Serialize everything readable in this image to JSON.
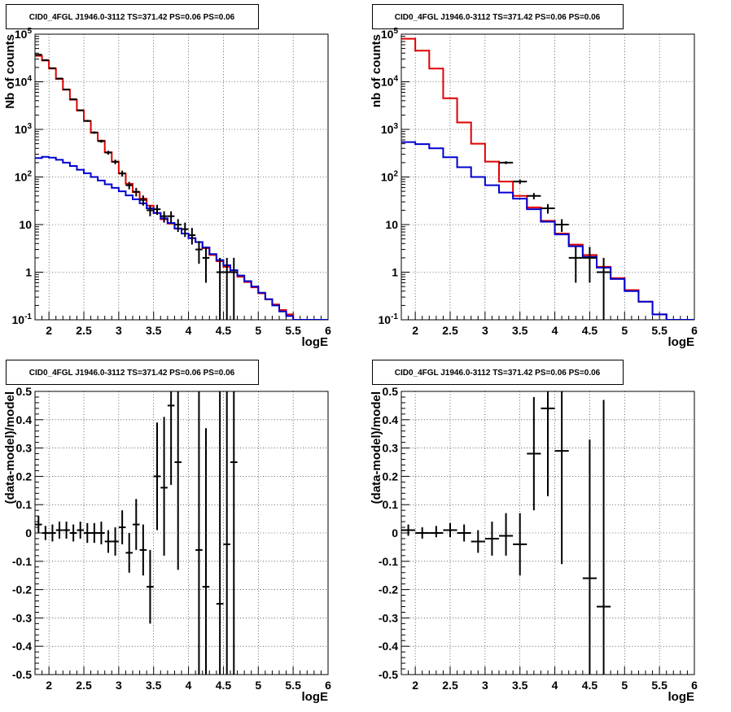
{
  "chart_data": [
    {
      "type": "line",
      "title": "CID0_4FGL J1946.0-3112 TS=371.42 PS=0.06 PS=0.06",
      "xlabel": "logE",
      "ylabel": "Nb of counts",
      "xlim": [
        1.8,
        6
      ],
      "ylim": [
        0.1,
        100000
      ],
      "yscale": "log",
      "grid": true,
      "x_ticks": [
        2,
        2.5,
        3,
        3.5,
        4,
        4.5,
        5,
        5.5,
        6
      ],
      "y_ticks": [
        0.1,
        1,
        10,
        100,
        1000,
        10000,
        100000
      ],
      "y_tick_labels": [
        "10^-1",
        "1",
        "10",
        "10^2",
        "10^3",
        "10^4",
        "10^5"
      ],
      "bin_edges": [
        1.8,
        1.9,
        2.0,
        2.1,
        2.2,
        2.3,
        2.4,
        2.5,
        2.6,
        2.7,
        2.8,
        2.9,
        3.0,
        3.1,
        3.2,
        3.3,
        3.4,
        3.5,
        3.6,
        3.7,
        3.8,
        3.9,
        4.0,
        4.1,
        4.2,
        4.3,
        4.4,
        4.5,
        4.6,
        4.7,
        4.8,
        4.9,
        5.0,
        5.1,
        5.2,
        5.3,
        5.4,
        5.5,
        5.6,
        5.7,
        5.8,
        5.9,
        6.0
      ],
      "series": [
        {
          "color": "#e00000",
          "values": [
            35000,
            28000,
            19000,
            11500,
            6800,
            4200,
            2500,
            1500,
            850,
            580,
            330,
            210,
            118,
            72,
            48,
            35,
            25,
            17.5,
            13,
            10.5,
            8.2,
            6.5,
            5.2,
            4.3,
            3.2,
            2.3,
            1.7,
            1.3,
            1.0,
            0.8,
            0.62,
            0.48,
            0.36,
            0.27,
            0.21,
            0.16,
            0.13,
            0.1,
            0.1,
            0.1,
            0.1,
            0.1
          ]
        },
        {
          "color": "#0000d0",
          "values": [
            250,
            265,
            255,
            230,
            200,
            170,
            142,
            120,
            100,
            84,
            70,
            59,
            50,
            41,
            34,
            28,
            22,
            17.5,
            13.5,
            10.8,
            8.3,
            6.5,
            5.2,
            4.3,
            3.3,
            2.4,
            1.8,
            1.4,
            1.1,
            0.85,
            0.65,
            0.5,
            0.37,
            0.27,
            0.2,
            0.15,
            0.12,
            0.1,
            0.1,
            0.1,
            0.1,
            0.1
          ]
        }
      ],
      "points": [
        {
          "x": 1.85,
          "y": 37000,
          "ylo": 36500,
          "yhi": 37500
        },
        {
          "x": 1.95,
          "y": 28500,
          "ylo": 28000,
          "yhi": 29000
        },
        {
          "x": 2.05,
          "y": 19300,
          "ylo": 18900,
          "yhi": 19700
        },
        {
          "x": 2.15,
          "y": 11700,
          "ylo": 11400,
          "yhi": 12000
        },
        {
          "x": 2.25,
          "y": 6900,
          "ylo": 6700,
          "yhi": 7100
        },
        {
          "x": 2.35,
          "y": 4300,
          "ylo": 4150,
          "yhi": 4450
        },
        {
          "x": 2.45,
          "y": 2520,
          "ylo": 2420,
          "yhi": 2620
        },
        {
          "x": 2.55,
          "y": 1510,
          "ylo": 1440,
          "yhi": 1580
        },
        {
          "x": 2.65,
          "y": 860,
          "ylo": 810,
          "yhi": 910
        },
        {
          "x": 2.75,
          "y": 565,
          "ylo": 525,
          "yhi": 605
        },
        {
          "x": 2.85,
          "y": 325,
          "ylo": 295,
          "yhi": 355
        },
        {
          "x": 2.95,
          "y": 208,
          "ylo": 185,
          "yhi": 231
        },
        {
          "x": 3.05,
          "y": 119,
          "ylo": 102,
          "yhi": 136
        },
        {
          "x": 3.15,
          "y": 67,
          "ylo": 55,
          "yhi": 79
        },
        {
          "x": 3.25,
          "y": 49,
          "ylo": 39,
          "yhi": 59
        },
        {
          "x": 3.35,
          "y": 33,
          "ylo": 25,
          "yhi": 41
        },
        {
          "x": 3.45,
          "y": 20,
          "ylo": 15,
          "yhi": 25
        },
        {
          "x": 3.55,
          "y": 21,
          "ylo": 16,
          "yhi": 26
        },
        {
          "x": 3.65,
          "y": 15,
          "ylo": 11,
          "yhi": 19
        },
        {
          "x": 3.75,
          "y": 15,
          "ylo": 11,
          "yhi": 19
        },
        {
          "x": 3.85,
          "y": 10,
          "ylo": 7,
          "yhi": 13
        },
        {
          "x": 3.95,
          "y": 8,
          "ylo": 5.5,
          "yhi": 11
        },
        {
          "x": 4.05,
          "y": 6,
          "ylo": 3.8,
          "yhi": 8.5
        },
        {
          "x": 4.15,
          "y": 3,
          "ylo": 1.5,
          "yhi": 4.5
        },
        {
          "x": 4.25,
          "y": 2,
          "ylo": 0.6,
          "yhi": 3.4
        },
        {
          "x": 4.45,
          "y": 1,
          "ylo": 0.1,
          "yhi": 2.0
        },
        {
          "x": 4.55,
          "y": 1,
          "ylo": 0.1,
          "yhi": 2.0
        },
        {
          "x": 4.65,
          "y": 1,
          "ylo": 0.1,
          "yhi": 2.0
        }
      ]
    },
    {
      "type": "line",
      "title": "CID0_4FGL J1946.0-3112 TS=371.42 PS=0.06 PS=0.06",
      "xlabel": "logE",
      "ylabel": "nb of counts",
      "xlim": [
        1.8,
        6
      ],
      "ylim": [
        0.1,
        100000
      ],
      "yscale": "log",
      "grid": true,
      "x_ticks": [
        2,
        2.5,
        3,
        3.5,
        4,
        4.5,
        5,
        5.5,
        6
      ],
      "y_ticks": [
        0.1,
        1,
        10,
        100,
        1000,
        10000,
        100000
      ],
      "y_tick_labels": [
        "10^-1",
        "1",
        "10",
        "10^2",
        "10^3",
        "10^4",
        "10^5"
      ],
      "bin_edges": [
        1.8,
        2.0,
        2.2,
        2.4,
        2.6,
        2.8,
        3.0,
        3.2,
        3.4,
        3.6,
        3.8,
        4.0,
        4.2,
        4.4,
        4.6,
        4.8,
        5.0,
        5.2,
        5.4,
        5.6,
        5.8,
        6.0
      ],
      "series": [
        {
          "color": "#e00000",
          "values": [
            80000,
            45000,
            19000,
            4500,
            1400,
            500,
            210,
            80,
            40,
            23,
            12,
            6.5,
            3.8,
            2.3,
            1.3,
            0.75,
            0.42,
            0.24,
            0.13,
            0.1,
            0.1
          ]
        },
        {
          "color": "#0000d0",
          "values": [
            540,
            490,
            400,
            260,
            160,
            100,
            67,
            47,
            35,
            21,
            11.5,
            6.2,
            3.5,
            2.1,
            1.25,
            0.72,
            0.4,
            0.24,
            0.13,
            0.1,
            0.1
          ]
        }
      ],
      "points": [
        {
          "x": 3.3,
          "y": 200,
          "ylo": 186,
          "yhi": 214,
          "xw": 0.1
        },
        {
          "x": 3.5,
          "y": 80,
          "ylo": 71,
          "yhi": 89,
          "xw": 0.1
        },
        {
          "x": 3.7,
          "y": 40,
          "ylo": 34,
          "yhi": 46,
          "xw": 0.1
        },
        {
          "x": 3.9,
          "y": 22,
          "ylo": 17,
          "yhi": 27,
          "xw": 0.1
        },
        {
          "x": 4.1,
          "y": 10,
          "ylo": 7,
          "yhi": 13,
          "xw": 0.1
        },
        {
          "x": 4.3,
          "y": 2,
          "ylo": 0.6,
          "yhi": 3.4,
          "xw": 0.1
        },
        {
          "x": 4.5,
          "y": 2,
          "ylo": 0.6,
          "yhi": 3.4,
          "xw": 0.1
        },
        {
          "x": 4.7,
          "y": 1,
          "ylo": 0.1,
          "yhi": 2.0,
          "xw": 0.1
        }
      ]
    },
    {
      "type": "scatter",
      "title": "CID0_4FGL J1946.0-3112 TS=371.42 PS=0.06 PS=0.06",
      "xlabel": "logE",
      "ylabel": "(data-model)/model",
      "xlim": [
        1.8,
        6
      ],
      "ylim": [
        -0.5,
        0.5
      ],
      "grid": true,
      "x_ticks": [
        2,
        2.5,
        3,
        3.5,
        4,
        4.5,
        5,
        5.5,
        6
      ],
      "y_ticks": [
        -0.5,
        -0.4,
        -0.3,
        -0.2,
        -0.1,
        0,
        0.1,
        0.2,
        0.3,
        0.4,
        0.5
      ],
      "points": [
        {
          "x": 1.85,
          "y": 0.03,
          "ylo": 0.0,
          "yhi": 0.06
        },
        {
          "x": 1.95,
          "y": 0.0,
          "ylo": -0.025,
          "yhi": 0.025
        },
        {
          "x": 2.05,
          "y": 0.0,
          "ylo": -0.03,
          "yhi": 0.03
        },
        {
          "x": 2.15,
          "y": 0.01,
          "ylo": -0.02,
          "yhi": 0.04
        },
        {
          "x": 2.25,
          "y": 0.01,
          "ylo": -0.02,
          "yhi": 0.04
        },
        {
          "x": 2.35,
          "y": 0.0,
          "ylo": -0.03,
          "yhi": 0.03
        },
        {
          "x": 2.45,
          "y": 0.01,
          "ylo": -0.02,
          "yhi": 0.04
        },
        {
          "x": 2.55,
          "y": 0.0,
          "ylo": -0.035,
          "yhi": 0.035
        },
        {
          "x": 2.65,
          "y": 0.0,
          "ylo": -0.035,
          "yhi": 0.035
        },
        {
          "x": 2.75,
          "y": 0.0,
          "ylo": -0.04,
          "yhi": 0.04
        },
        {
          "x": 2.85,
          "y": -0.03,
          "ylo": -0.07,
          "yhi": 0.01
        },
        {
          "x": 2.95,
          "y": -0.03,
          "ylo": -0.08,
          "yhi": 0.02
        },
        {
          "x": 3.05,
          "y": 0.02,
          "ylo": -0.04,
          "yhi": 0.08
        },
        {
          "x": 3.15,
          "y": -0.07,
          "ylo": -0.14,
          "yhi": 0.0
        },
        {
          "x": 3.25,
          "y": 0.03,
          "ylo": -0.06,
          "yhi": 0.12
        },
        {
          "x": 3.35,
          "y": -0.06,
          "ylo": -0.15,
          "yhi": 0.03
        },
        {
          "x": 3.45,
          "y": -0.19,
          "ylo": -0.32,
          "yhi": -0.06
        },
        {
          "x": 3.55,
          "y": 0.2,
          "ylo": 0.01,
          "yhi": 0.39
        },
        {
          "x": 3.65,
          "y": 0.16,
          "ylo": -0.08,
          "yhi": 0.41
        },
        {
          "x": 3.75,
          "y": 0.45,
          "ylo": 0.17,
          "yhi": 0.72
        },
        {
          "x": 3.85,
          "y": 0.25,
          "ylo": -0.13,
          "yhi": 0.62
        },
        {
          "x": 4.15,
          "y": -0.06,
          "ylo": -0.55,
          "yhi": 0.5
        },
        {
          "x": 4.25,
          "y": -0.19,
          "ylo": -0.75,
          "yhi": 0.37
        },
        {
          "x": 4.45,
          "y": -0.25,
          "ylo": -1.2,
          "yhi": 0.7
        },
        {
          "x": 4.55,
          "y": -0.04,
          "ylo": -0.9,
          "yhi": 0.8
        },
        {
          "x": 4.65,
          "y": 0.25,
          "ylo": -0.6,
          "yhi": 1.1
        }
      ]
    },
    {
      "type": "scatter",
      "title": "CID0_4FGL J1946.0-3112 TS=371.42 PS=0.06 PS=0.06",
      "xlabel": "logE",
      "ylabel": "(data-model)/model",
      "xlim": [
        1.8,
        6
      ],
      "ylim": [
        -0.5,
        0.5
      ],
      "grid": true,
      "x_ticks": [
        2,
        2.5,
        3,
        3.5,
        4,
        4.5,
        5,
        5.5,
        6
      ],
      "y_ticks": [
        -0.5,
        -0.4,
        -0.3,
        -0.2,
        -0.1,
        0,
        0.1,
        0.2,
        0.3,
        0.4,
        0.5
      ],
      "points": [
        {
          "x": 1.9,
          "y": 0.01,
          "ylo": -0.01,
          "yhi": 0.03,
          "xw": 0.1
        },
        {
          "x": 2.1,
          "y": 0.0,
          "ylo": -0.02,
          "yhi": 0.02,
          "xw": 0.1
        },
        {
          "x": 2.3,
          "y": 0.0,
          "ylo": -0.015,
          "yhi": 0.025,
          "xw": 0.1
        },
        {
          "x": 2.5,
          "y": 0.01,
          "ylo": -0.015,
          "yhi": 0.035,
          "xw": 0.1
        },
        {
          "x": 2.7,
          "y": 0.0,
          "ylo": -0.03,
          "yhi": 0.03,
          "xw": 0.1
        },
        {
          "x": 2.9,
          "y": -0.03,
          "ylo": -0.07,
          "yhi": 0.01,
          "xw": 0.1
        },
        {
          "x": 3.1,
          "y": -0.02,
          "ylo": -0.08,
          "yhi": 0.04,
          "xw": 0.1
        },
        {
          "x": 3.3,
          "y": -0.01,
          "ylo": -0.08,
          "yhi": 0.07,
          "xw": 0.1
        },
        {
          "x": 3.5,
          "y": -0.04,
          "ylo": -0.15,
          "yhi": 0.07,
          "xw": 0.1
        },
        {
          "x": 3.7,
          "y": 0.28,
          "ylo": 0.08,
          "yhi": 0.48,
          "xw": 0.1
        },
        {
          "x": 3.9,
          "y": 0.44,
          "ylo": 0.13,
          "yhi": 0.75,
          "xw": 0.1
        },
        {
          "x": 4.1,
          "y": 0.29,
          "ylo": -0.11,
          "yhi": 0.7,
          "xw": 0.1
        },
        {
          "x": 4.5,
          "y": -0.16,
          "ylo": -0.65,
          "yhi": 0.33,
          "xw": 0.1
        },
        {
          "x": 4.7,
          "y": -0.26,
          "ylo": -0.75,
          "yhi": 0.47,
          "xw": 0.1
        }
      ]
    }
  ]
}
